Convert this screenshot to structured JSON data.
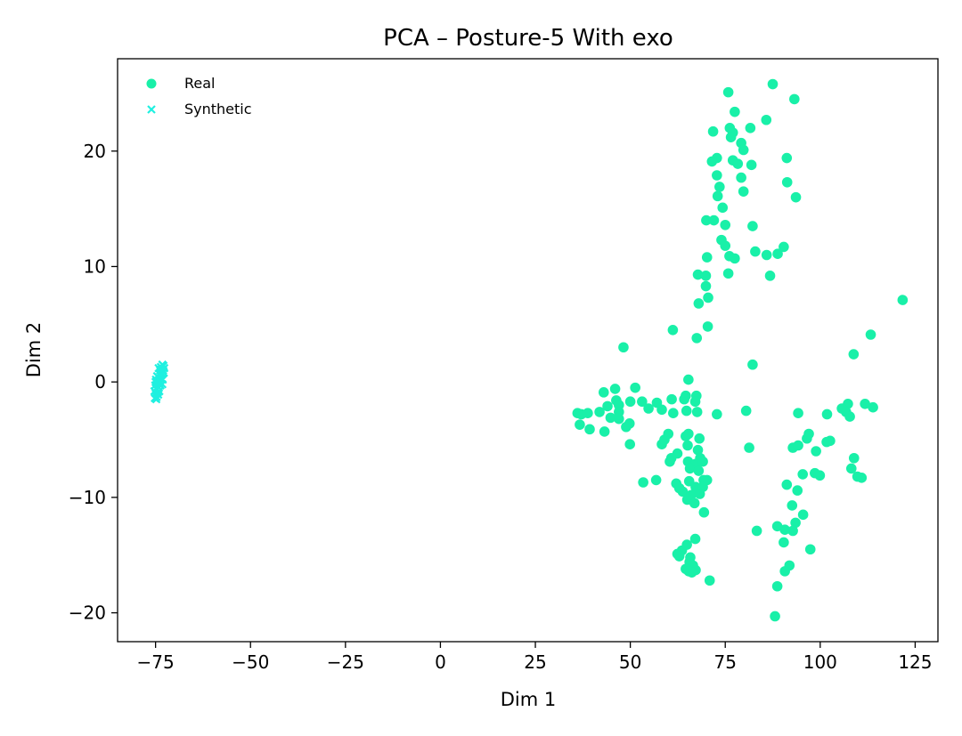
{
  "chart_data": {
    "type": "scatter",
    "title": "PCA – Posture-5 With exo",
    "xlabel": "Dim 1",
    "ylabel": "Dim 2",
    "xlim": [
      -85,
      131
    ],
    "ylim": [
      -22.5,
      28
    ],
    "xticks": [
      -75,
      -50,
      -25,
      0,
      25,
      50,
      75,
      100,
      125
    ],
    "yticks": [
      -20,
      -10,
      0,
      10,
      20
    ],
    "xtick_labels": [
      "−75",
      "−50",
      "−25",
      "0",
      "25",
      "50",
      "75",
      "100",
      "125"
    ],
    "ytick_labels": [
      "−20",
      "−10",
      "0",
      "10",
      "20"
    ],
    "grid": false,
    "legend_position": "top-left",
    "series": [
      {
        "name": "Real",
        "marker": "circle",
        "color": "#19f0a8",
        "points": [
          [
            75.8,
            25.1
          ],
          [
            87.5,
            25.8
          ],
          [
            93.2,
            24.5
          ],
          [
            77.5,
            23.4
          ],
          [
            85.8,
            22.7
          ],
          [
            76.2,
            22.0
          ],
          [
            77.0,
            21.6
          ],
          [
            81.6,
            22.0
          ],
          [
            71.8,
            21.7
          ],
          [
            76.5,
            21.2
          ],
          [
            79.2,
            20.7
          ],
          [
            79.8,
            20.1
          ],
          [
            72.8,
            19.4
          ],
          [
            71.5,
            19.1
          ],
          [
            77.0,
            19.2
          ],
          [
            78.3,
            18.9
          ],
          [
            81.9,
            18.8
          ],
          [
            91.2,
            19.4
          ],
          [
            79.2,
            17.7
          ],
          [
            72.8,
            17.9
          ],
          [
            79.8,
            16.5
          ],
          [
            73.5,
            16.9
          ],
          [
            91.3,
            17.3
          ],
          [
            73.0,
            16.1
          ],
          [
            93.6,
            16.0
          ],
          [
            74.3,
            15.1
          ],
          [
            70.0,
            14.0
          ],
          [
            72.0,
            14.0
          ],
          [
            75.0,
            13.6
          ],
          [
            82.2,
            13.5
          ],
          [
            74.0,
            12.3
          ],
          [
            75.0,
            11.8
          ],
          [
            90.4,
            11.7
          ],
          [
            82.9,
            11.3
          ],
          [
            76.1,
            10.9
          ],
          [
            77.5,
            10.7
          ],
          [
            70.2,
            10.8
          ],
          [
            85.9,
            11.0
          ],
          [
            88.8,
            11.1
          ],
          [
            75.8,
            9.4
          ],
          [
            67.8,
            9.3
          ],
          [
            69.9,
            9.2
          ],
          [
            86.8,
            9.2
          ],
          [
            69.9,
            8.3
          ],
          [
            70.5,
            7.3
          ],
          [
            68.0,
            6.8
          ],
          [
            121.7,
            7.1
          ],
          [
            70.4,
            4.8
          ],
          [
            61.2,
            4.5
          ],
          [
            113.3,
            4.1
          ],
          [
            67.5,
            3.8
          ],
          [
            108.8,
            2.4
          ],
          [
            48.2,
            3.0
          ],
          [
            82.2,
            1.5
          ],
          [
            65.3,
            0.2
          ],
          [
            43.0,
            -0.9
          ],
          [
            46.0,
            -0.6
          ],
          [
            51.3,
            -0.5
          ],
          [
            64.6,
            -1.2
          ],
          [
            67.4,
            -1.2
          ],
          [
            46.3,
            -1.6
          ],
          [
            50.0,
            -1.7
          ],
          [
            53.1,
            -1.7
          ],
          [
            57.0,
            -1.8
          ],
          [
            60.9,
            -1.5
          ],
          [
            64.2,
            -1.5
          ],
          [
            67.1,
            -1.7
          ],
          [
            47.0,
            -2.0
          ],
          [
            44.0,
            -2.1
          ],
          [
            107.3,
            -1.9
          ],
          [
            111.8,
            -1.9
          ],
          [
            113.9,
            -2.2
          ],
          [
            105.7,
            -2.3
          ],
          [
            36.1,
            -2.7
          ],
          [
            37.1,
            -2.8
          ],
          [
            38.8,
            -2.7
          ],
          [
            41.9,
            -2.6
          ],
          [
            47.0,
            -2.6
          ],
          [
            54.8,
            -2.3
          ],
          [
            58.3,
            -2.4
          ],
          [
            61.3,
            -2.7
          ],
          [
            64.8,
            -2.5
          ],
          [
            67.6,
            -2.6
          ],
          [
            72.8,
            -2.8
          ],
          [
            80.5,
            -2.5
          ],
          [
            94.2,
            -2.7
          ],
          [
            101.8,
            -2.8
          ],
          [
            106.8,
            -2.6
          ],
          [
            107.8,
            -3.0
          ],
          [
            44.8,
            -3.1
          ],
          [
            47.0,
            -3.2
          ],
          [
            36.7,
            -3.7
          ],
          [
            39.3,
            -4.1
          ],
          [
            43.2,
            -4.3
          ],
          [
            49.8,
            -3.6
          ],
          [
            48.9,
            -3.9
          ],
          [
            60.0,
            -4.5
          ],
          [
            64.6,
            -4.7
          ],
          [
            65.3,
            -4.5
          ],
          [
            68.2,
            -4.9
          ],
          [
            58.3,
            -5.4
          ],
          [
            59.0,
            -5.0
          ],
          [
            49.9,
            -5.4
          ],
          [
            65.1,
            -5.5
          ],
          [
            81.3,
            -5.7
          ],
          [
            92.8,
            -5.7
          ],
          [
            94.2,
            -5.5
          ],
          [
            96.5,
            -4.9
          ],
          [
            97.0,
            -4.5
          ],
          [
            102.6,
            -5.1
          ],
          [
            101.7,
            -5.2
          ],
          [
            98.9,
            -6.0
          ],
          [
            67.8,
            -5.9
          ],
          [
            62.4,
            -6.2
          ],
          [
            60.8,
            -6.6
          ],
          [
            60.4,
            -6.9
          ],
          [
            65.2,
            -6.9
          ],
          [
            68.4,
            -6.6
          ],
          [
            67.2,
            -7.1
          ],
          [
            69.1,
            -6.9
          ],
          [
            108.9,
            -6.6
          ],
          [
            65.7,
            -7.5
          ],
          [
            68.0,
            -7.7
          ],
          [
            108.2,
            -7.5
          ],
          [
            95.4,
            -8.0
          ],
          [
            98.6,
            -7.9
          ],
          [
            99.9,
            -8.1
          ],
          [
            109.8,
            -8.2
          ],
          [
            110.9,
            -8.3
          ],
          [
            53.4,
            -8.7
          ],
          [
            56.8,
            -8.5
          ],
          [
            62.1,
            -8.8
          ],
          [
            65.5,
            -8.6
          ],
          [
            69.3,
            -8.5
          ],
          [
            70.2,
            -8.5
          ],
          [
            67.2,
            -9.1
          ],
          [
            67.8,
            -9.4
          ],
          [
            69.1,
            -9.1
          ],
          [
            63.8,
            -9.5
          ],
          [
            62.9,
            -9.2
          ],
          [
            66.0,
            -9.8
          ],
          [
            68.3,
            -9.7
          ],
          [
            65.0,
            -10.2
          ],
          [
            66.9,
            -10.5
          ],
          [
            91.2,
            -8.9
          ],
          [
            94.0,
            -9.4
          ],
          [
            92.6,
            -10.7
          ],
          [
            69.4,
            -11.3
          ],
          [
            95.5,
            -11.5
          ],
          [
            93.5,
            -12.2
          ],
          [
            88.7,
            -12.5
          ],
          [
            90.7,
            -12.8
          ],
          [
            92.8,
            -12.9
          ],
          [
            83.3,
            -12.9
          ],
          [
            67.1,
            -13.6
          ],
          [
            90.4,
            -13.9
          ],
          [
            97.4,
            -14.5
          ],
          [
            63.6,
            -14.6
          ],
          [
            64.9,
            -14.1
          ],
          [
            62.4,
            -14.9
          ],
          [
            62.9,
            -15.1
          ],
          [
            65.8,
            -15.2
          ],
          [
            65.6,
            -15.6
          ],
          [
            91.9,
            -15.9
          ],
          [
            66.5,
            -15.9
          ],
          [
            64.6,
            -16.2
          ],
          [
            65.4,
            -16.4
          ],
          [
            67.2,
            -16.3
          ],
          [
            66.2,
            -16.5
          ],
          [
            90.7,
            -16.4
          ],
          [
            70.9,
            -17.2
          ],
          [
            88.7,
            -17.7
          ],
          [
            88.1,
            -20.3
          ]
        ]
      },
      {
        "name": "Synthetic",
        "marker": "x",
        "color": "#1ff0e0",
        "points": [
          [
            -75.2,
            -1.4
          ],
          [
            -75.0,
            -1.0
          ],
          [
            -74.8,
            -0.6
          ],
          [
            -74.6,
            -0.2
          ],
          [
            -74.5,
            0.1
          ],
          [
            -74.3,
            0.4
          ],
          [
            -74.0,
            0.7
          ],
          [
            -73.8,
            1.0
          ],
          [
            -73.6,
            1.3
          ],
          [
            -73.2,
            1.5
          ],
          [
            -72.9,
            1.4
          ],
          [
            -73.0,
            1.0
          ],
          [
            -73.3,
            0.7
          ],
          [
            -73.5,
            0.3
          ],
          [
            -73.8,
            -0.1
          ],
          [
            -74.1,
            -0.5
          ],
          [
            -74.4,
            -0.9
          ],
          [
            -74.7,
            -1.3
          ],
          [
            -75.3,
            -0.8
          ],
          [
            -75.1,
            -0.3
          ],
          [
            -74.9,
            0.2
          ],
          [
            -74.2,
            1.2
          ],
          [
            -73.4,
            1.1
          ],
          [
            -72.8,
            0.8
          ],
          [
            -73.1,
            0.2
          ],
          [
            -73.7,
            -0.3
          ],
          [
            -74.0,
            -0.8
          ],
          [
            -74.6,
            0.5
          ],
          [
            -75.0,
            0.0
          ],
          [
            -74.3,
            -1.1
          ],
          [
            -73.9,
            0.0
          ],
          [
            -73.6,
            0.6
          ],
          [
            -74.8,
            -1.5
          ],
          [
            -72.7,
            1.2
          ],
          [
            -73.2,
            -0.2
          ]
        ]
      }
    ]
  }
}
